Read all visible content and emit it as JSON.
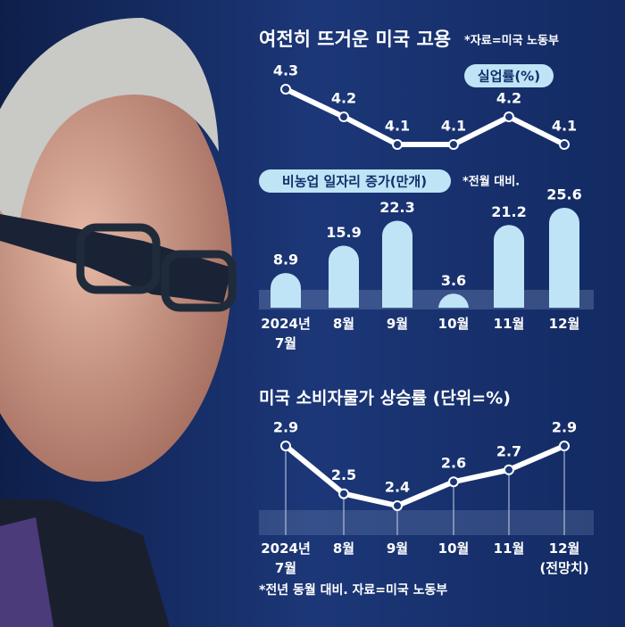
{
  "header": {
    "title": "여전히 뜨거운 미국 고용",
    "source": "*자료=미국 노동부"
  },
  "chart_data": [
    {
      "type": "line",
      "title": "실업률(%)",
      "values": [
        4.3,
        4.2,
        4.1,
        4.1,
        4.2,
        4.1
      ],
      "color": "#ffffff"
    },
    {
      "type": "bar",
      "title": "비농업 일자리 증가(만개)",
      "note": "*전월 대비.",
      "categories": [
        "2024년\n7월",
        "8월",
        "9월",
        "10월",
        "11월",
        "12월"
      ],
      "values": [
        8.9,
        15.9,
        22.3,
        3.6,
        21.2,
        25.6
      ],
      "color": "#bfe4f6"
    },
    {
      "type": "line",
      "title": "미국 소비자물가 상승률 (단위=%)",
      "categories": [
        "2024년\n7월",
        "8월",
        "9월",
        "10월",
        "11월",
        "12월\n(전망치)"
      ],
      "values": [
        2.9,
        2.5,
        2.4,
        2.6,
        2.7,
        2.9
      ],
      "color": "#ffffff",
      "note": "*전년 동월 대비. 자료=미국 노동부"
    }
  ]
}
